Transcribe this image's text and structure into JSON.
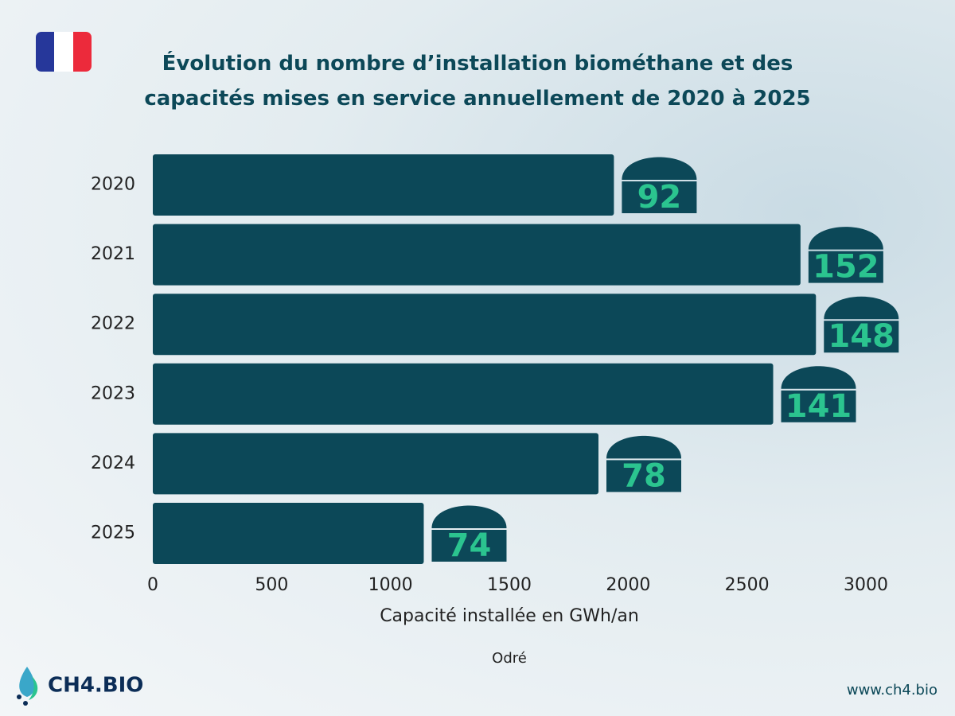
{
  "chart_data": {
    "type": "bar",
    "orientation": "horizontal",
    "title": "Évolution du nombre d’installation biométhane et des capacités mises en service annuellement de 2020 à 2025",
    "categories": [
      "2020",
      "2021",
      "2022",
      "2023",
      "2024",
      "2025"
    ],
    "values": [
      1940,
      2725,
      2790,
      2610,
      1875,
      1140
    ],
    "installations": [
      92,
      152,
      148,
      141,
      78,
      74
    ],
    "color": "#0c4858",
    "label_color": "#2bc48f",
    "xlim": [
      0,
      3000
    ],
    "xticks": [
      0,
      500,
      1000,
      1500,
      2000,
      2500,
      3000
    ],
    "x_label": "Capacité installée en GWh/an",
    "source": "Odré"
  },
  "footer": {
    "logo": "CH4.BIO",
    "website": "www.ch4.bio"
  }
}
